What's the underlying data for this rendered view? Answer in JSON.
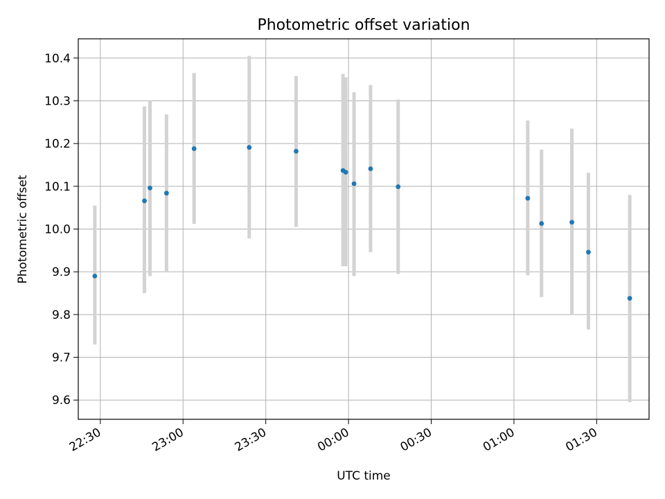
{
  "chart_data": {
    "type": "scatter",
    "title": "Photometric offset variation",
    "xlabel": "UTC time",
    "ylabel": "Photometric offset",
    "x_axis": {
      "kind": "time",
      "range": [
        "22:22",
        "01:49"
      ],
      "ticks": [
        "22:30",
        "23:00",
        "23:30",
        "00:00",
        "00:30",
        "01:00",
        "01:30"
      ]
    },
    "y_axis": {
      "range": [
        9.555,
        10.445
      ],
      "ticks": [
        "9.6",
        "9.7",
        "9.8",
        "9.9",
        "10.0",
        "10.1",
        "10.2",
        "10.3",
        "10.4"
      ]
    },
    "grid": true,
    "point_color": "#1f77b4",
    "errorbar_color": "#d3d3d3",
    "points": [
      {
        "t": "22:28",
        "y": 9.89,
        "lo": 9.73,
        "hi": 10.055
      },
      {
        "t": "22:46",
        "y": 10.066,
        "lo": 9.85,
        "hi": 10.287
      },
      {
        "t": "22:48",
        "y": 10.096,
        "lo": 9.89,
        "hi": 10.3
      },
      {
        "t": "22:54",
        "y": 10.084,
        "lo": 9.9,
        "hi": 10.268
      },
      {
        "t": "23:04",
        "y": 10.188,
        "lo": 10.012,
        "hi": 10.365
      },
      {
        "t": "23:24",
        "y": 10.191,
        "lo": 9.978,
        "hi": 10.405
      },
      {
        "t": "23:41",
        "y": 10.182,
        "lo": 10.005,
        "hi": 10.358
      },
      {
        "t": "23:58",
        "y": 10.137,
        "lo": 9.913,
        "hi": 10.363
      },
      {
        "t": "23:59",
        "y": 10.133,
        "lo": 9.913,
        "hi": 10.355
      },
      {
        "t": "00:02",
        "y": 10.106,
        "lo": 9.89,
        "hi": 10.32
      },
      {
        "t": "00:08",
        "y": 10.141,
        "lo": 9.946,
        "hi": 10.337
      },
      {
        "t": "00:18",
        "y": 10.099,
        "lo": 9.895,
        "hi": 10.303
      },
      {
        "t": "01:05",
        "y": 10.072,
        "lo": 9.892,
        "hi": 10.254
      },
      {
        "t": "01:10",
        "y": 10.013,
        "lo": 9.841,
        "hi": 10.186
      },
      {
        "t": "01:21",
        "y": 10.016,
        "lo": 9.8,
        "hi": 10.235
      },
      {
        "t": "01:27",
        "y": 9.946,
        "lo": 9.765,
        "hi": 10.132
      },
      {
        "t": "01:42",
        "y": 9.838,
        "lo": 9.595,
        "hi": 10.08
      }
    ]
  }
}
